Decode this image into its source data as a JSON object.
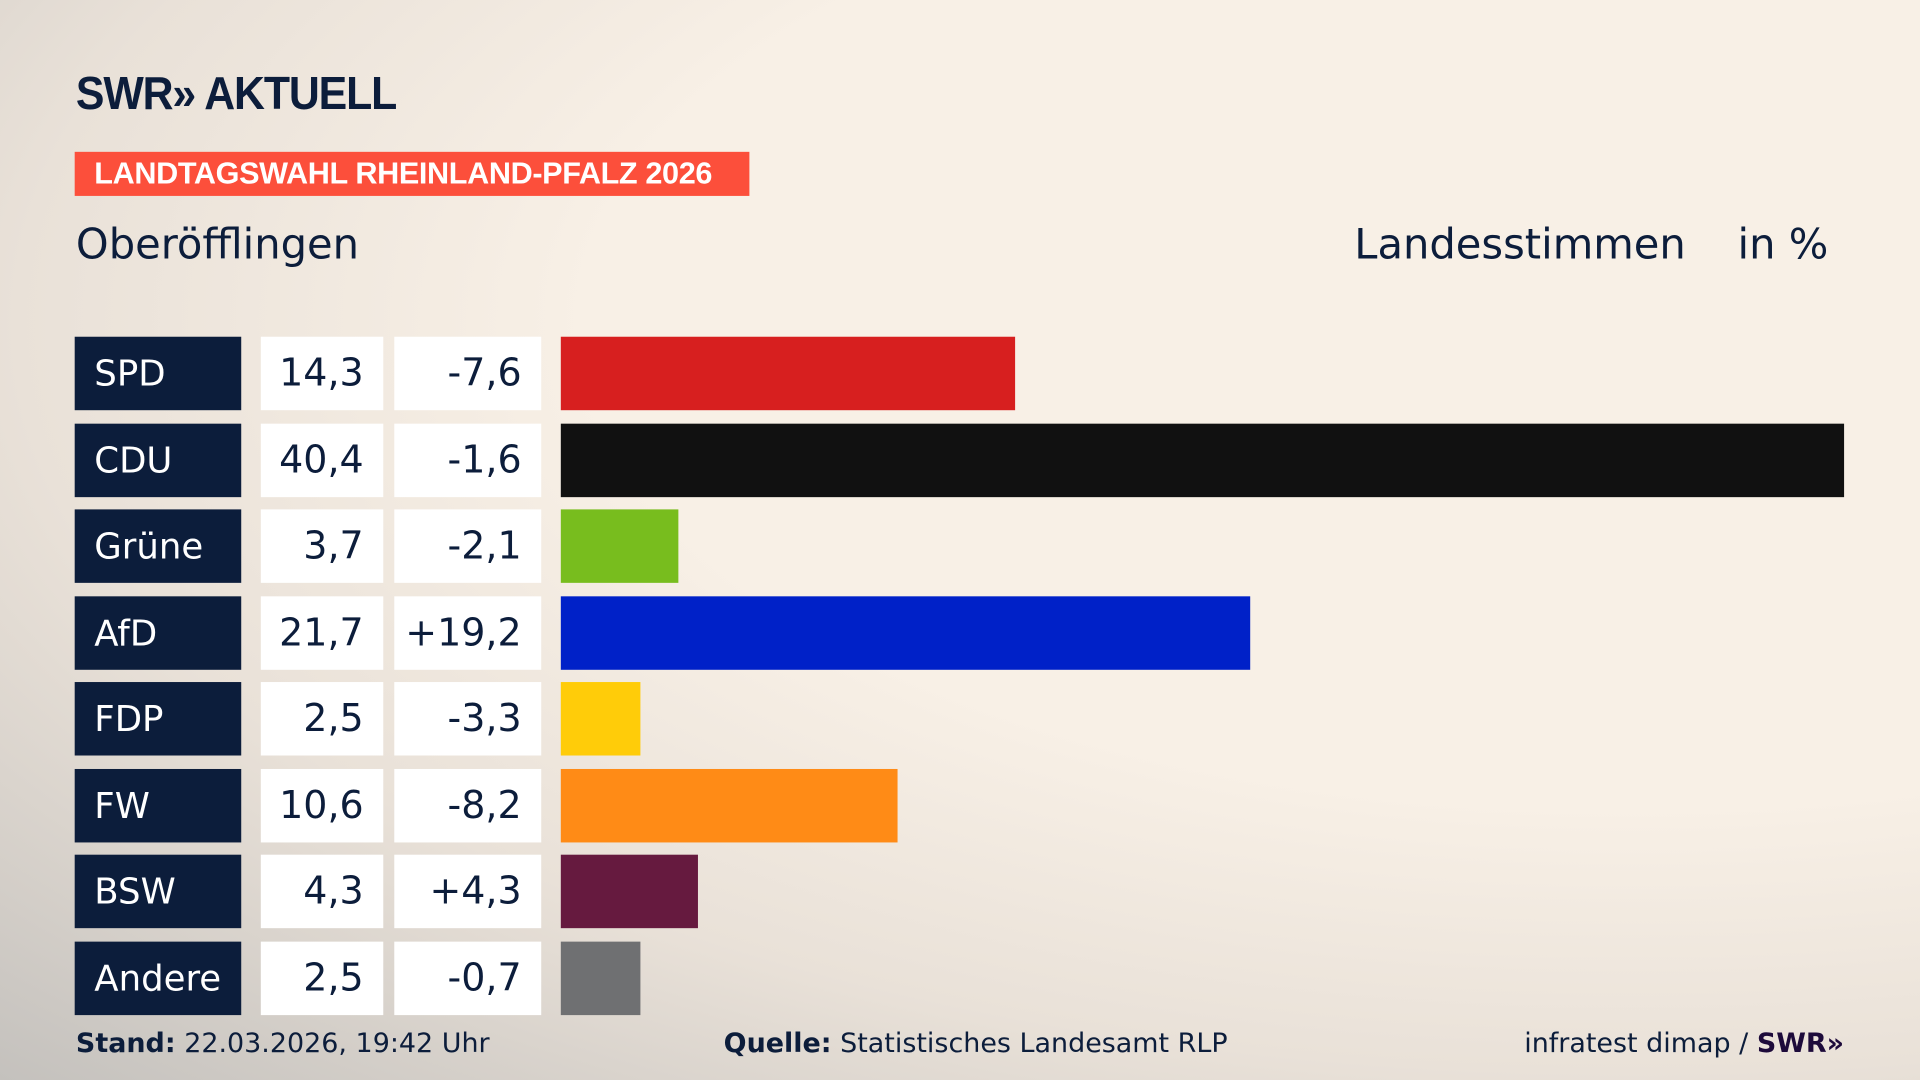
{
  "header": {
    "logo": "SWR» AKTUELL",
    "banner": "LANDTAGSWAHL RHEINLAND-PFALZ 2026",
    "place": "Oberöfflingen",
    "measure": "Landesstimmen",
    "unit": "in %"
  },
  "chart_data": {
    "type": "bar",
    "orientation": "horizontal",
    "title": "Oberöfflingen",
    "categories": [
      "SPD",
      "CDU",
      "Grüne",
      "AfD",
      "FDP",
      "FW",
      "BSW",
      "Andere"
    ],
    "series": [
      {
        "name": "Landesstimmen",
        "values": [
          14.3,
          40.4,
          3.7,
          21.7,
          2.5,
          10.6,
          4.3,
          2.5
        ]
      }
    ],
    "value_labels": [
      "14,3",
      "40,4",
      "3,7",
      "21,7",
      "2,5",
      "10,6",
      "4,3",
      "2,5"
    ],
    "diff_values": [
      -7.6,
      -1.6,
      -2.1,
      19.2,
      -3.3,
      -8.2,
      4.3,
      -0.7
    ],
    "diff_labels": [
      "-7,6",
      "-1,6",
      "-2,1",
      "+19,2",
      "-3,3",
      "-8,2",
      "+4,3",
      "-0,7"
    ],
    "colors": [
      "#d71f1f",
      "#111111",
      "#78bd1e",
      "#0021c8",
      "#ffcc09",
      "#ff8b16",
      "#661a3f",
      "#6f7072"
    ],
    "xlim": [
      0,
      40.4
    ],
    "grid": false,
    "legend": "none"
  },
  "footer": {
    "stand_label": "Stand:",
    "stand_value": "22.03.2026, 19:42 Uhr",
    "source_label": "Quelle:",
    "source_value": "Statistisches Landesamt RLP",
    "credit": "infratest dimap /",
    "credit_logo": "SWR»"
  }
}
